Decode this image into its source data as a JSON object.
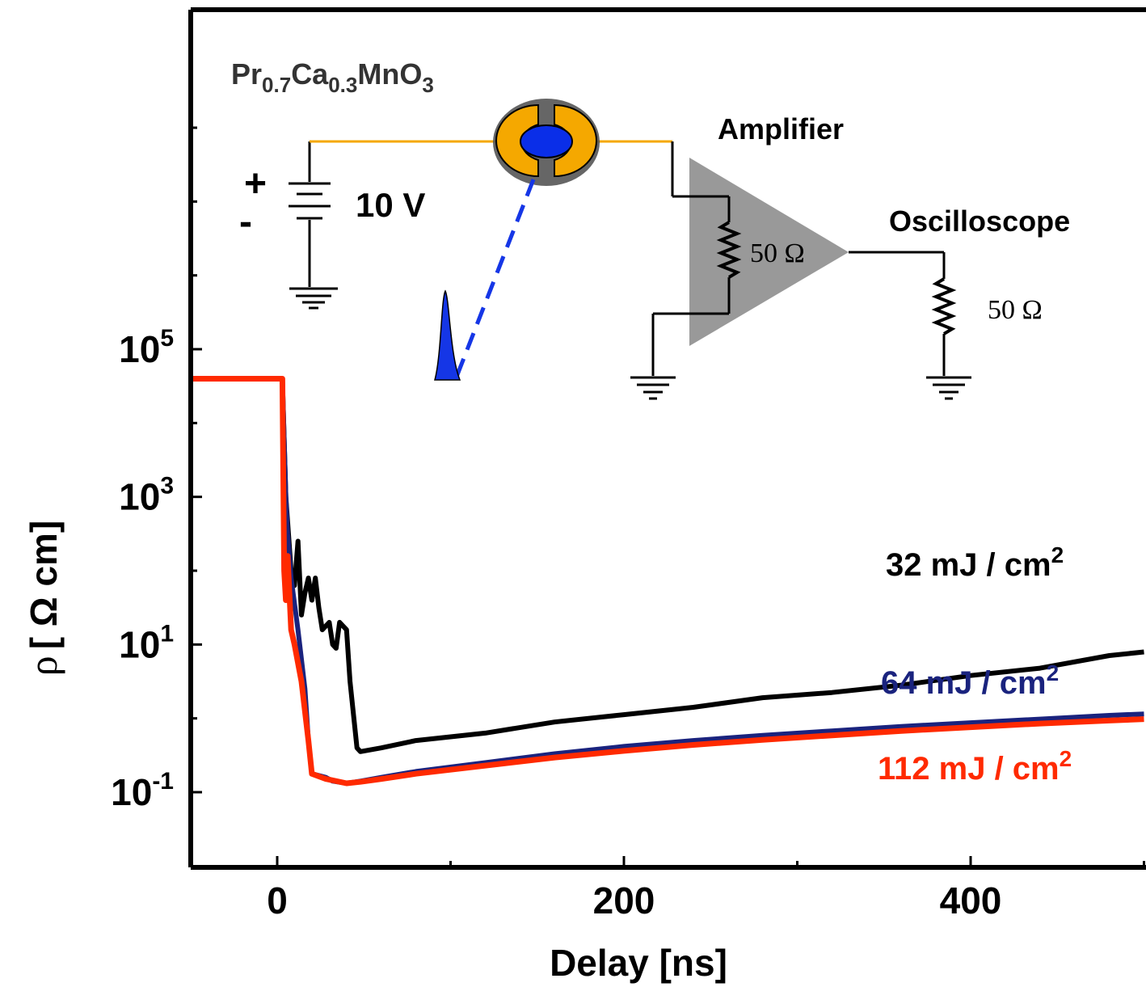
{
  "chart_data": {
    "type": "line",
    "xlabel": "Delay [ns]",
    "ylabel_symbol": "ρ",
    "ylabel_unit": "[ Ω cm]",
    "xlim": [
      -25,
      250
    ],
    "ylim_log10": [
      -2,
      5.5
    ],
    "log_y": true,
    "grid": false,
    "x_ticks": [
      0,
      200,
      400
    ],
    "y_ticks": [
      {
        "base": "10",
        "exp": "5",
        "log10": 5
      },
      {
        "base": "10",
        "exp": "3",
        "log10": 3
      },
      {
        "base": "10",
        "exp": "1",
        "log10": 1
      },
      {
        "base": "10",
        "exp": "-1",
        "log10": -1
      }
    ],
    "series": [
      {
        "name": "32 mJ / cm",
        "name_sup": "2",
        "color": "#000000",
        "points": [
          [
            -25,
            4.6
          ],
          [
            0,
            4.6
          ],
          [
            1.5,
            4.6
          ],
          [
            2.5,
            3.0
          ],
          [
            4,
            2.0
          ],
          [
            5,
            1.8
          ],
          [
            6,
            2.4
          ],
          [
            7,
            1.4
          ],
          [
            8,
            1.7
          ],
          [
            9,
            1.9
          ],
          [
            10,
            1.6
          ],
          [
            11,
            1.9
          ],
          [
            12,
            1.5
          ],
          [
            13,
            1.2
          ],
          [
            15,
            1.3
          ],
          [
            16,
            1.0
          ],
          [
            17,
            0.95
          ],
          [
            18,
            1.3
          ],
          [
            20,
            1.2
          ],
          [
            21,
            0.5
          ],
          [
            23,
            -0.4
          ],
          [
            24,
            -0.45
          ],
          [
            30,
            -0.4
          ],
          [
            40,
            -0.3
          ],
          [
            60,
            -0.2
          ],
          [
            80,
            -0.05
          ],
          [
            100,
            0.05
          ],
          [
            120,
            0.15
          ],
          [
            140,
            0.28
          ],
          [
            160,
            0.35
          ],
          [
            180,
            0.45
          ],
          [
            200,
            0.58
          ],
          [
            220,
            0.68
          ],
          [
            240,
            0.85
          ],
          [
            250,
            0.9
          ]
        ]
      },
      {
        "name": "64 mJ / cm",
        "name_sup": "2",
        "color": "#1a237e",
        "points": [
          [
            -25,
            4.6
          ],
          [
            0,
            4.6
          ],
          [
            1.5,
            4.6
          ],
          [
            2.5,
            3.0
          ],
          [
            3,
            2.5
          ],
          [
            4,
            1.9
          ],
          [
            6,
            1.2
          ],
          [
            8,
            0.4
          ],
          [
            9,
            -0.3
          ],
          [
            10,
            -0.75
          ],
          [
            14,
            -0.8
          ],
          [
            16,
            -0.85
          ],
          [
            20,
            -0.88
          ],
          [
            24,
            -0.85
          ],
          [
            30,
            -0.8
          ],
          [
            40,
            -0.72
          ],
          [
            60,
            -0.6
          ],
          [
            80,
            -0.48
          ],
          [
            100,
            -0.38
          ],
          [
            120,
            -0.3
          ],
          [
            140,
            -0.23
          ],
          [
            160,
            -0.17
          ],
          [
            180,
            -0.11
          ],
          [
            200,
            -0.06
          ],
          [
            220,
            -0.01
          ],
          [
            240,
            0.04
          ],
          [
            250,
            0.06
          ]
        ]
      },
      {
        "name": "112 mJ / cm",
        "name_sup": "2",
        "color": "#ff2a00",
        "points": [
          [
            -25,
            4.6
          ],
          [
            0,
            4.6
          ],
          [
            1.5,
            4.6
          ],
          [
            2,
            2.0
          ],
          [
            2.5,
            1.6
          ],
          [
            3,
            2.2
          ],
          [
            4,
            1.2
          ],
          [
            5,
            1.0
          ],
          [
            7,
            0.5
          ],
          [
            9,
            -0.3
          ],
          [
            10,
            -0.75
          ],
          [
            14,
            -0.82
          ],
          [
            20,
            -0.88
          ],
          [
            24,
            -0.86
          ],
          [
            30,
            -0.82
          ],
          [
            40,
            -0.75
          ],
          [
            60,
            -0.64
          ],
          [
            80,
            -0.53
          ],
          [
            100,
            -0.44
          ],
          [
            120,
            -0.36
          ],
          [
            140,
            -0.29
          ],
          [
            160,
            -0.23
          ],
          [
            180,
            -0.17
          ],
          [
            200,
            -0.12
          ],
          [
            220,
            -0.07
          ],
          [
            240,
            -0.03
          ],
          [
            250,
            -0.01
          ]
        ]
      }
    ],
    "inset": {
      "material": {
        "p1": "Pr",
        "s1": "0.7",
        "p2": "Ca",
        "s2": "0.3",
        "p3": "MnO",
        "s3": "3"
      },
      "plus_sign": "+",
      "minus_sign": "-",
      "voltage_label": "10 V",
      "amplifier_label": "Amplifier",
      "oscilloscope_label": "Oscilloscope",
      "resistor_amp_label": "50 Ω",
      "resistor_osc_label": "50 Ω",
      "colors": {
        "wire": "#f5a800",
        "sample_blue": "#0a2ee8",
        "laser": "#1536e6",
        "amplifier": "#999999",
        "sample_ring": "#555555"
      }
    }
  }
}
